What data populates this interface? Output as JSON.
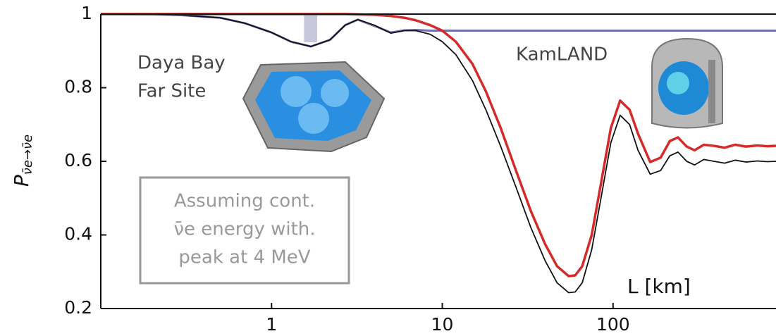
{
  "chart_data": {
    "type": "line",
    "ylabel": "P",
    "ylabel_sub": "ν̄e→ν̄e",
    "xlabel": "L [km]",
    "annotations": [
      "Daya Bay",
      "Far Site",
      "KamLAND"
    ],
    "note": [
      "Assuming cont.",
      "ν̄e energy with.",
      "peak at 4 MeV"
    ],
    "log_x": true,
    "xlim": [
      0.1,
      900
    ],
    "ylim": [
      0.2,
      1
    ],
    "xticks": [
      1,
      10,
      100
    ],
    "yticks": [
      0.2,
      0.4,
      0.6,
      0.8,
      1
    ],
    "band_x": [
      1.55,
      1.85
    ],
    "band_color": "#c8c8dc",
    "x": [
      0.1,
      0.2,
      0.3,
      0.5,
      0.7,
      1,
      1.3,
      1.7,
      2.2,
      2.7,
      3.2,
      4,
      5,
      6,
      7,
      8.5,
      10,
      12,
      15,
      18,
      22,
      27,
      33,
      40,
      47,
      55,
      60,
      66,
      75,
      85,
      97,
      110,
      125,
      140,
      165,
      190,
      215,
      240,
      270,
      300,
      340,
      390,
      450,
      520,
      600,
      700,
      800,
      900
    ],
    "series": [
      {
        "color": "#6f6fb0",
        "width": 3,
        "values": [
          1,
          0.999,
          0.997,
          0.99,
          0.975,
          0.95,
          0.925,
          0.912,
          0.93,
          0.97,
          0.985,
          0.968,
          0.95,
          0.956,
          0.957,
          0.955,
          0.955,
          0.955,
          0.955,
          0.955,
          0.955,
          0.955,
          0.955,
          0.955,
          0.955,
          0.955,
          0.955,
          0.955,
          0.955,
          0.955,
          0.955,
          0.955,
          0.955,
          0.955,
          0.955,
          0.955,
          0.955,
          0.955,
          0.955,
          0.955,
          0.955,
          0.955,
          0.955,
          0.955,
          0.955,
          0.955,
          0.955,
          0.955
        ]
      },
      {
        "color": "#111111",
        "width": 1.8,
        "values": [
          1,
          0.999,
          0.997,
          0.99,
          0.975,
          0.95,
          0.925,
          0.912,
          0.93,
          0.97,
          0.985,
          0.97,
          0.948,
          0.955,
          0.955,
          0.945,
          0.925,
          0.89,
          0.82,
          0.74,
          0.64,
          0.53,
          0.42,
          0.33,
          0.27,
          0.243,
          0.245,
          0.27,
          0.36,
          0.5,
          0.65,
          0.725,
          0.7,
          0.63,
          0.565,
          0.575,
          0.615,
          0.625,
          0.6,
          0.59,
          0.605,
          0.6,
          0.595,
          0.603,
          0.598,
          0.601,
          0.599,
          0.6
        ]
      },
      {
        "color": "#d42a2a",
        "width": 3.5,
        "values": [
          1,
          1,
          1,
          1,
          1,
          1,
          1,
          1,
          1,
          1,
          0.999,
          0.998,
          0.995,
          0.99,
          0.983,
          0.97,
          0.955,
          0.925,
          0.865,
          0.79,
          0.69,
          0.575,
          0.465,
          0.375,
          0.315,
          0.288,
          0.29,
          0.315,
          0.4,
          0.54,
          0.69,
          0.765,
          0.74,
          0.675,
          0.598,
          0.61,
          0.655,
          0.665,
          0.64,
          0.63,
          0.645,
          0.642,
          0.637,
          0.645,
          0.64,
          0.643,
          0.641,
          0.642
        ]
      }
    ]
  }
}
